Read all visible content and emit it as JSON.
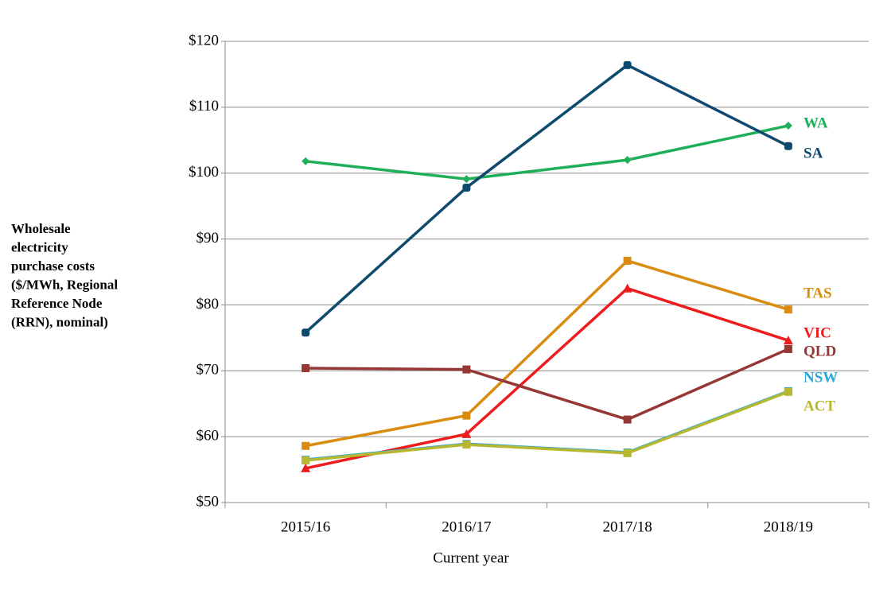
{
  "chart_data": {
    "type": "line",
    "y_label": [
      "Wholesale",
      "electricity",
      "purchase costs",
      "($/MWh, Regional",
      "Reference Node",
      "(RRN), nominal)"
    ],
    "x_label": "Current year",
    "categories": [
      "2015/16",
      "2016/17",
      "2017/18",
      "2018/19"
    ],
    "ylim": [
      50,
      120
    ],
    "yticks": [
      {
        "value": 50,
        "label": "$50"
      },
      {
        "value": 60,
        "label": "$60"
      },
      {
        "value": 70,
        "label": "$70"
      },
      {
        "value": 80,
        "label": "$80"
      },
      {
        "value": 90,
        "label": "$90"
      },
      {
        "value": 100,
        "label": "$100"
      },
      {
        "value": 110,
        "label": "$110"
      },
      {
        "value": 120,
        "label": "$120"
      }
    ],
    "grid": true,
    "series": [
      {
        "name": "WA",
        "color": "#1faf5a",
        "marker": "diamond",
        "values": [
          101.8,
          99.1,
          102.0,
          107.2
        ]
      },
      {
        "name": "SA",
        "color": "#0e4a6e",
        "marker": "circle",
        "values": [
          75.8,
          97.8,
          116.4,
          104.1
        ]
      },
      {
        "name": "TAS",
        "color": "#d98c10",
        "marker": "square",
        "values": [
          58.6,
          63.2,
          86.7,
          79.3
        ]
      },
      {
        "name": "VIC",
        "color": "#ee1c1c",
        "marker": "triangle",
        "values": [
          55.2,
          60.4,
          82.5,
          74.6
        ]
      },
      {
        "name": "QLD",
        "color": "#953735",
        "marker": "square",
        "values": [
          70.4,
          70.2,
          62.6,
          73.3
        ]
      },
      {
        "name": "NSW",
        "color": "#2aa7dc",
        "marker": "square",
        "values": [
          56.5,
          58.9,
          57.6,
          66.9
        ]
      },
      {
        "name": "ACT",
        "color": "#b8b830",
        "marker": "square",
        "values": [
          56.4,
          58.8,
          57.5,
          66.8
        ]
      }
    ]
  }
}
